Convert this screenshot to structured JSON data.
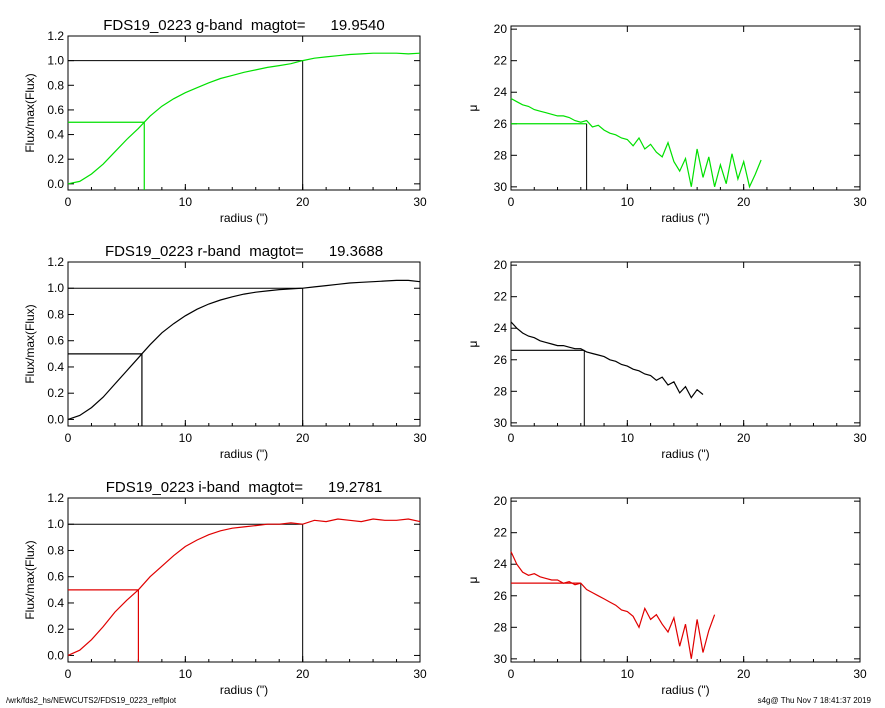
{
  "footer": {
    "left": "/wrk/fds2_hs/NEWCUTS2/FDS19_0223_reffplot",
    "right": "s4g@  Thu Nov  7 18:41:37 2019"
  },
  "chart_data": [
    {
      "type": "line",
      "panel": "growth-g",
      "title": "FDS19_0223 g-band  magtot=      19.9540",
      "xlabel": "radius (\")",
      "ylabel": "Flux/max(Flux)",
      "xlim": [
        0,
        30
      ],
      "ylim": [
        -0.05,
        1.2
      ],
      "xticks": [
        "0",
        "10",
        "20",
        "30"
      ],
      "yticks": [
        "0.0",
        "0.2",
        "0.4",
        "0.6",
        "0.8",
        "1.0",
        "1.2"
      ],
      "color": "#00e000",
      "x": [
        0,
        1,
        2,
        3,
        4,
        5,
        6,
        6.5,
        7,
        8,
        9,
        10,
        11,
        12,
        13,
        14,
        15,
        16,
        17,
        18,
        19,
        20,
        21,
        22,
        23,
        24,
        25,
        26,
        27,
        28,
        29,
        30
      ],
      "y": [
        0,
        0.02,
        0.08,
        0.16,
        0.26,
        0.36,
        0.45,
        0.5,
        0.55,
        0.63,
        0.69,
        0.74,
        0.78,
        0.82,
        0.855,
        0.88,
        0.905,
        0.925,
        0.945,
        0.96,
        0.975,
        1.0,
        1.02,
        1.03,
        1.04,
        1.05,
        1.055,
        1.06,
        1.06,
        1.06,
        1.055,
        1.06
      ],
      "half_radius": 6.5,
      "total_radius": 20
    },
    {
      "type": "line",
      "panel": "sb-g",
      "ylabel": "μ",
      "xlabel": "radius (\")",
      "xlim": [
        0,
        30
      ],
      "ylim": [
        30.2,
        19.8
      ],
      "y_inverted": true,
      "xticks": [
        "0",
        "10",
        "20",
        "30"
      ],
      "yticks": [
        "20",
        "22",
        "24",
        "26",
        "28",
        "30"
      ],
      "color": "#00e000",
      "x": [
        0,
        0.5,
        1,
        1.5,
        2,
        2.5,
        3,
        3.5,
        4,
        4.5,
        5,
        5.5,
        6,
        6.5,
        7,
        7.5,
        8,
        8.5,
        9,
        9.5,
        10,
        10.5,
        11,
        11.5,
        12,
        12.5,
        13,
        13.5,
        14,
        14.5,
        15,
        15.5,
        16,
        16.5,
        17,
        17.5,
        18,
        18.5,
        19,
        19.5,
        20,
        20.5,
        21,
        21.5
      ],
      "y": [
        24.4,
        24.6,
        24.8,
        24.9,
        25.1,
        25.2,
        25.3,
        25.4,
        25.5,
        25.5,
        25.6,
        25.8,
        25.9,
        25.8,
        26.2,
        26.1,
        26.4,
        26.6,
        26.7,
        26.9,
        27.0,
        27.4,
        26.9,
        27.6,
        27.3,
        27.8,
        28.1,
        27.2,
        28.4,
        29.0,
        28.2,
        30.0,
        27.6,
        29.4,
        28.1,
        30.0,
        28.6,
        29.8,
        27.9,
        29.5,
        28.4,
        30.0,
        29.2,
        28.3
      ],
      "mu_half": 26.0,
      "half_radius": 6.5
    },
    {
      "type": "line",
      "panel": "growth-r",
      "title": "FDS19_0223 r-band  magtot=      19.3688",
      "xlabel": "radius (\")",
      "ylabel": "Flux/max(Flux)",
      "xlim": [
        0,
        30
      ],
      "ylim": [
        -0.05,
        1.2
      ],
      "xticks": [
        "0",
        "10",
        "20",
        "30"
      ],
      "yticks": [
        "0.0",
        "0.2",
        "0.4",
        "0.6",
        "0.8",
        "1.0",
        "1.2"
      ],
      "color": "#000000",
      "x": [
        0,
        1,
        2,
        3,
        4,
        5,
        6,
        6.3,
        7,
        8,
        9,
        10,
        11,
        12,
        13,
        14,
        15,
        16,
        17,
        18,
        19,
        20,
        21,
        22,
        23,
        24,
        25,
        26,
        27,
        28,
        29,
        30
      ],
      "y": [
        0,
        0.03,
        0.09,
        0.17,
        0.27,
        0.37,
        0.47,
        0.5,
        0.57,
        0.66,
        0.73,
        0.79,
        0.84,
        0.88,
        0.91,
        0.935,
        0.955,
        0.97,
        0.98,
        0.99,
        0.995,
        1.0,
        1.01,
        1.02,
        1.03,
        1.04,
        1.045,
        1.05,
        1.055,
        1.06,
        1.06,
        1.05
      ],
      "half_radius": 6.3,
      "total_radius": 20
    },
    {
      "type": "line",
      "panel": "sb-r",
      "ylabel": "μ",
      "xlabel": "radius (\")",
      "xlim": [
        0,
        30
      ],
      "ylim": [
        30.2,
        19.8
      ],
      "y_inverted": true,
      "xticks": [
        "0",
        "10",
        "20",
        "30"
      ],
      "yticks": [
        "20",
        "22",
        "24",
        "26",
        "28",
        "30"
      ],
      "color": "#000000",
      "x": [
        0,
        0.5,
        1,
        1.5,
        2,
        2.5,
        3,
        3.5,
        4,
        4.5,
        5,
        5.5,
        6,
        6.5,
        7,
        7.5,
        8,
        8.5,
        9,
        9.5,
        10,
        10.5,
        11,
        11.5,
        12,
        12.5,
        13,
        13.5,
        14,
        14.5,
        15,
        15.5,
        16,
        16.5
      ],
      "y": [
        23.6,
        24.0,
        24.3,
        24.5,
        24.6,
        24.8,
        24.9,
        25.0,
        25.1,
        25.1,
        25.2,
        25.3,
        25.3,
        25.5,
        25.6,
        25.7,
        25.8,
        26.0,
        26.1,
        26.3,
        26.4,
        26.6,
        26.7,
        26.9,
        27.0,
        27.3,
        27.1,
        27.6,
        27.4,
        28.1,
        27.7,
        28.4,
        27.9,
        28.2
      ],
      "mu_half": 25.4,
      "half_radius": 6.3
    },
    {
      "type": "line",
      "panel": "growth-i",
      "title": "FDS19_0223 i-band  magtot=      19.2781",
      "xlabel": "radius (\")",
      "ylabel": "Flux/max(Flux)",
      "xlim": [
        0,
        30
      ],
      "ylim": [
        -0.05,
        1.2
      ],
      "xticks": [
        "0",
        "10",
        "20",
        "30"
      ],
      "yticks": [
        "0.0",
        "0.2",
        "0.4",
        "0.6",
        "0.8",
        "1.0",
        "1.2"
      ],
      "color": "#e00000",
      "x": [
        0,
        1,
        2,
        3,
        4,
        5,
        6,
        7,
        8,
        9,
        10,
        11,
        12,
        13,
        14,
        15,
        16,
        17,
        18,
        19,
        20,
        21,
        22,
        23,
        24,
        25,
        26,
        27,
        28,
        29,
        30
      ],
      "y": [
        0,
        0.04,
        0.12,
        0.22,
        0.33,
        0.42,
        0.5,
        0.6,
        0.68,
        0.76,
        0.83,
        0.88,
        0.92,
        0.95,
        0.97,
        0.98,
        0.99,
        1.0,
        1.0,
        1.01,
        1.0,
        1.03,
        1.02,
        1.04,
        1.03,
        1.02,
        1.04,
        1.03,
        1.03,
        1.04,
        1.02
      ],
      "half_radius": 6.0,
      "total_radius": 20
    },
    {
      "type": "line",
      "panel": "sb-i",
      "ylabel": "μ",
      "xlabel": "radius (\")",
      "xlim": [
        0,
        30
      ],
      "ylim": [
        30.2,
        19.8
      ],
      "y_inverted": true,
      "xticks": [
        "0",
        "10",
        "20",
        "30"
      ],
      "yticks": [
        "20",
        "22",
        "24",
        "26",
        "28",
        "30"
      ],
      "color": "#e00000",
      "x": [
        0,
        0.5,
        1,
        1.5,
        2,
        2.5,
        3,
        3.5,
        4,
        4.5,
        5,
        5.5,
        6,
        6.5,
        7,
        7.5,
        8,
        8.5,
        9,
        9.5,
        10,
        10.5,
        11,
        11.5,
        12,
        12.5,
        13,
        13.5,
        14,
        14.5,
        15,
        15.5,
        16,
        16.5,
        17,
        17.5
      ],
      "y": [
        23.2,
        24.0,
        24.5,
        24.7,
        24.6,
        24.8,
        24.9,
        25.0,
        25.0,
        25.2,
        25.1,
        25.3,
        25.2,
        25.6,
        25.8,
        26.0,
        26.2,
        26.4,
        26.6,
        26.9,
        27.0,
        27.3,
        28.0,
        26.8,
        27.5,
        27.2,
        27.8,
        28.3,
        27.4,
        29.2,
        27.8,
        30.0,
        27.5,
        29.6,
        28.2,
        27.2
      ],
      "mu_half": 25.2,
      "half_radius": 6.0
    }
  ]
}
